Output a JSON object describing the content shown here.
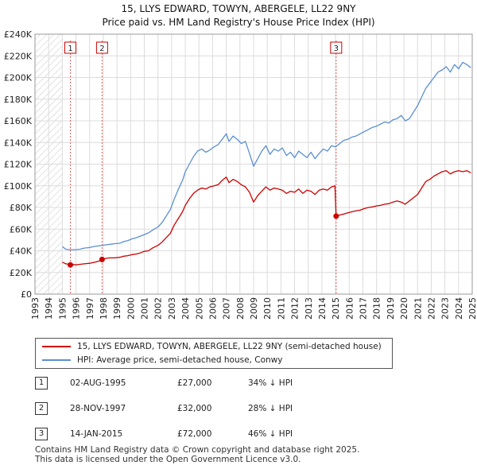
{
  "chart_data": {
    "type": "line",
    "title": "15, LLYS EDWARD, TOWYN, ABERGELE, LL22 9NY",
    "subtitle": "Price paid vs. HM Land Registry's House Price Index (HPI)",
    "xlabel": "",
    "ylabel": "",
    "xlim": [
      1993,
      2025
    ],
    "ylim": [
      0,
      240000
    ],
    "grid": true,
    "hatched_range_end": 1995.0,
    "x_ticks": [
      1993,
      1994,
      1995,
      1996,
      1997,
      1998,
      1999,
      2000,
      2001,
      2002,
      2003,
      2004,
      2005,
      2006,
      2007,
      2008,
      2009,
      2010,
      2011,
      2012,
      2013,
      2014,
      2015,
      2016,
      2017,
      2018,
      2019,
      2020,
      2021,
      2022,
      2023,
      2024,
      2025
    ],
    "y_ticks": [
      {
        "value": 0,
        "label": "£0"
      },
      {
        "value": 20000,
        "label": "£20K"
      },
      {
        "value": 40000,
        "label": "£40K"
      },
      {
        "value": 60000,
        "label": "£60K"
      },
      {
        "value": 80000,
        "label": "£80K"
      },
      {
        "value": 100000,
        "label": "£100K"
      },
      {
        "value": 120000,
        "label": "£120K"
      },
      {
        "value": 140000,
        "label": "£140K"
      },
      {
        "value": 160000,
        "label": "£160K"
      },
      {
        "value": 180000,
        "label": "£180K"
      },
      {
        "value": 200000,
        "label": "£200K"
      },
      {
        "value": 220000,
        "label": "£220K"
      },
      {
        "value": 240000,
        "label": "£240K"
      }
    ],
    "series": [
      {
        "name": "15, LLYS EDWARD, TOWYN, ABERGELE, LL22 9NY (semi-detached house)",
        "color": "#cc0000",
        "x": [
          1995.0,
          1995.25,
          1995.5,
          1995.59,
          1995.8,
          1996.0,
          1996.3,
          1996.6,
          1997.0,
          1997.4,
          1997.7,
          1997.91,
          1998.2,
          1998.5,
          1998.8,
          1999.2,
          1999.5,
          1999.8,
          2000.1,
          2000.4,
          2000.7,
          2001.0,
          2001.3,
          2001.6,
          2002.0,
          2002.3,
          2002.6,
          2002.9,
          2003.2,
          2003.5,
          2003.8,
          2004.0,
          2004.3,
          2004.6,
          2004.9,
          2005.2,
          2005.5,
          2005.8,
          2006.1,
          2006.4,
          2006.7,
          2007.0,
          2007.2,
          2007.5,
          2007.8,
          2008.1,
          2008.4,
          2008.7,
          2009.0,
          2009.3,
          2009.6,
          2009.9,
          2010.2,
          2010.5,
          2010.8,
          2011.1,
          2011.4,
          2011.7,
          2012.0,
          2012.3,
          2012.6,
          2012.9,
          2013.2,
          2013.5,
          2013.8,
          2014.1,
          2014.4,
          2014.7,
          2014.95,
          2015.04,
          2015.3,
          2015.6,
          2015.9,
          2016.2,
          2016.5,
          2016.8,
          2017.1,
          2017.4,
          2017.7,
          2018.0,
          2018.3,
          2018.6,
          2018.9,
          2019.2,
          2019.5,
          2019.8,
          2020.1,
          2020.4,
          2020.7,
          2021.0,
          2021.3,
          2021.6,
          2021.9,
          2022.2,
          2022.5,
          2022.8,
          2023.1,
          2023.4,
          2023.7,
          2024.0,
          2024.3,
          2024.6,
          2024.9
        ],
        "values": [
          29500,
          28000,
          27500,
          27000,
          27300,
          27000,
          27500,
          28000,
          28500,
          29500,
          30500,
          32000,
          33000,
          33500,
          33500,
          34000,
          35000,
          35500,
          36500,
          37000,
          38000,
          39500,
          40000,
          42500,
          45000,
          48000,
          52000,
          56000,
          64000,
          70000,
          76000,
          82000,
          88000,
          93000,
          96000,
          98000,
          97000,
          99000,
          100000,
          101000,
          105000,
          108000,
          103000,
          106000,
          104000,
          101000,
          99000,
          94000,
          85000,
          91000,
          95000,
          99000,
          96000,
          98000,
          97000,
          96000,
          93000,
          95000,
          94000,
          97000,
          93000,
          96000,
          95000,
          92000,
          96000,
          97000,
          96000,
          99000,
          100000,
          72000,
          73000,
          74000,
          75000,
          76000,
          77000,
          77500,
          79000,
          80000,
          80500,
          81500,
          82000,
          83000,
          83500,
          85000,
          86000,
          85000,
          83000,
          86000,
          89000,
          92000,
          98000,
          104000,
          106000,
          109000,
          111000,
          113000,
          114000,
          111000,
          113000,
          114000,
          113000,
          114000,
          112000
        ]
      },
      {
        "name": "HPI: Average price, semi-detached house, Conwy",
        "color": "#5b8fd0",
        "x": [
          1995.0,
          1995.25,
          1995.5,
          1995.75,
          1996.0,
          1996.3,
          1996.6,
          1997.0,
          1997.3,
          1997.6,
          1997.9,
          1998.2,
          1998.5,
          1998.8,
          1999.2,
          1999.5,
          1999.8,
          2000.1,
          2000.4,
          2000.7,
          2001.0,
          2001.3,
          2001.6,
          2002.0,
          2002.3,
          2002.6,
          2002.9,
          2003.2,
          2003.5,
          2003.8,
          2004.0,
          2004.3,
          2004.6,
          2004.9,
          2005.2,
          2005.5,
          2005.8,
          2006.1,
          2006.4,
          2006.7,
          2007.0,
          2007.2,
          2007.5,
          2007.8,
          2008.1,
          2008.4,
          2008.7,
          2009.0,
          2009.3,
          2009.6,
          2009.9,
          2010.2,
          2010.5,
          2010.8,
          2011.1,
          2011.4,
          2011.7,
          2012.0,
          2012.3,
          2012.6,
          2012.9,
          2013.2,
          2013.5,
          2013.8,
          2014.1,
          2014.4,
          2014.7,
          2015.0,
          2015.3,
          2015.6,
          2015.9,
          2016.2,
          2016.5,
          2016.8,
          2017.1,
          2017.4,
          2017.7,
          2018.0,
          2018.3,
          2018.6,
          2018.9,
          2019.2,
          2019.5,
          2019.8,
          2020.1,
          2020.4,
          2020.7,
          2021.0,
          2021.3,
          2021.6,
          2021.9,
          2022.2,
          2022.5,
          2022.8,
          2023.1,
          2023.4,
          2023.7,
          2024.0,
          2024.3,
          2024.6,
          2024.9
        ],
        "values": [
          44000,
          41500,
          41000,
          41000,
          41000,
          41500,
          42500,
          43000,
          44000,
          44500,
          45000,
          45500,
          46000,
          46500,
          47000,
          48500,
          49500,
          51000,
          52000,
          53500,
          55000,
          56500,
          59000,
          62000,
          66000,
          72000,
          78000,
          88000,
          97000,
          105000,
          113000,
          120000,
          127000,
          132000,
          134000,
          131000,
          133000,
          136000,
          138000,
          143000,
          148000,
          141000,
          146000,
          143000,
          139000,
          141000,
          130000,
          118000,
          125000,
          132000,
          137000,
          129000,
          134000,
          132000,
          135000,
          128000,
          131000,
          126000,
          132000,
          129000,
          126000,
          131000,
          125000,
          130000,
          134000,
          132000,
          137000,
          136000,
          139000,
          142000,
          143000,
          145000,
          146000,
          148000,
          150000,
          152000,
          154000,
          155000,
          157000,
          159000,
          158000,
          161000,
          162000,
          165000,
          160000,
          162000,
          168000,
          174000,
          182000,
          190000,
          195000,
          200000,
          205000,
          207000,
          210000,
          205000,
          212000,
          208000,
          214000,
          212000,
          209000
        ]
      }
    ],
    "sales": [
      {
        "num": "1",
        "x": 1995.59,
        "value": 27000
      },
      {
        "num": "2",
        "x": 1997.91,
        "value": 32000
      },
      {
        "num": "3",
        "x": 2015.04,
        "value": 72000
      }
    ]
  },
  "legend": {
    "property_label": "15, LLYS EDWARD, TOWYN, ABERGELE, LL22 9NY (semi-detached house)",
    "hpi_label": "HPI: Average price, semi-detached house, Conwy",
    "property_color": "#cc0000",
    "hpi_color": "#5b8fd0"
  },
  "annotations": [
    {
      "num": "1",
      "date": "02-AUG-1995",
      "price": "£27,000",
      "hpi": "34% ↓ HPI"
    },
    {
      "num": "2",
      "date": "28-NOV-1997",
      "price": "£32,000",
      "hpi": "28% ↓ HPI"
    },
    {
      "num": "3",
      "date": "14-JAN-2015",
      "price": "£72,000",
      "hpi": "46% ↓ HPI"
    }
  ],
  "footer": {
    "line1": "Contains HM Land Registry data © Crown copyright and database right 2025.",
    "line2": "This data is licensed under the Open Government Licence v3.0."
  }
}
